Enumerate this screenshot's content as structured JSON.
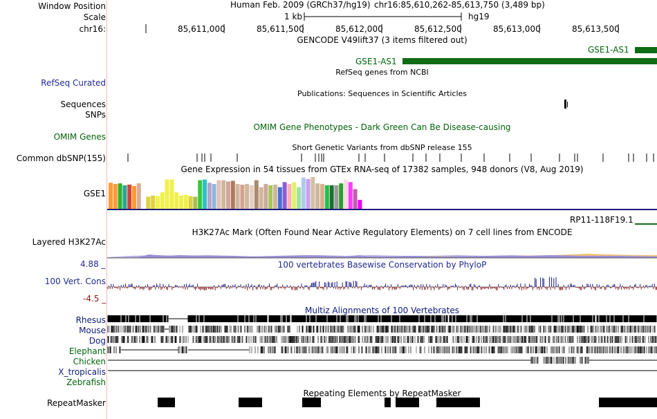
{
  "header": {
    "window_position_label": "Window Position",
    "scale_label": "Scale",
    "chrom_label": "chr16:",
    "assembly": "Human Feb. 2009 (GRCh37/hg19)",
    "position": "chr16:85,610,262-85,613,750 (3,489 bp)",
    "scale_text": "1 kb",
    "scale_db": "hg19",
    "ticks": [
      "85,611,000",
      "85,611,500",
      "85,612,000",
      "85,612,500",
      "85,613,000",
      "85,613,500"
    ]
  },
  "tracks": {
    "gencode": {
      "title": "GENCODE V49lift37 (3 items filtered out)",
      "gene_top": "GSE1-AS1",
      "gene_bottom": "GSE1-AS1",
      "color": "#0f6b14"
    },
    "refseq": {
      "label": "RefSeq Curated",
      "title": "RefSeq genes from NCBI"
    },
    "publications": {
      "title": "Publications: Sequences in Scientific Articles",
      "label_1": "Sequences",
      "label_2": "SNPs"
    },
    "omim": {
      "label": "OMIM Genes",
      "title": "OMIM Gene Phenotypes - Dark Green Can Be Disease-causing"
    },
    "dbsnp": {
      "label": "Common dbSNP(155)",
      "title": "Short Genetic Variants from dbSNP release 155"
    },
    "gtex": {
      "title": "Gene Expression in 54 tissues from GTEx RNA-seq of 17382 samples, 948 donors (V8, Aug 2019)",
      "label": "GSE1",
      "gene_right": "RP11-118F19.1",
      "bar_values": [
        0.82,
        0.78,
        0.8,
        0.74,
        0.76,
        0.72,
        0.8,
        0.62,
        0.38,
        0.42,
        0.4,
        0.52,
        0.92,
        0.92,
        0.52,
        0.42,
        0.44,
        0.4,
        0.38,
        0.9,
        0.92,
        0.82,
        0.78,
        0.9,
        0.9,
        0.86,
        0.88,
        0.78,
        0.76,
        0.78,
        0.74,
        0.9,
        0.68,
        0.78,
        0.74,
        0.76,
        0.68,
        0.84,
        0.78,
        0.84,
        0.68,
        0.98,
        0.94,
        1.0,
        0.8,
        0.78,
        0.74,
        0.74,
        0.74,
        0.8,
        0.92,
        0.84,
        0.62,
        0.28
      ],
      "bar_colors": [
        "#ff9b34",
        "#ff9b34",
        "#32b232",
        "#2aa78f",
        "#d0443c",
        "#ff9b34",
        "#ddac99",
        "#ffffff",
        "#ddd23f",
        "#ddd23f",
        "#f0f04a",
        "#f0f04a",
        "#f0f04a",
        "#f0f04a",
        "#f0f04a",
        "#f0f04a",
        "#f0f04a",
        "#ddd23f",
        "#aabd55",
        "#39c83c",
        "#29c3c8",
        "#b8a1cc",
        "#8fb8d8",
        "#e2c1b6",
        "#cfb79e",
        "#cfa89b",
        "#b07860",
        "#cfb79e",
        "#d7a38f",
        "#cfb79e",
        "#e2d0c0",
        "#a98b6e",
        "#cfb79e",
        "#cfa89b",
        "#a5c75a",
        "#cfb79e",
        "#4a6fd2",
        "#8d5cd4",
        "#ffb1b1",
        "#e0f06e",
        "#a0e2a0",
        "#b0c8f0",
        "#c8a2e8",
        "#d3c0a6",
        "#cfb79e",
        "#d8b08e",
        "#22c04b",
        "#1d6f2e",
        "#9b9b9b",
        "#2a9f2a",
        "#ffd7e6",
        "#ff3cff",
        "#c05faf",
        "#ee00ee"
      ]
    },
    "h3k27ac": {
      "label": "Layered H3K27Ac",
      "title": "H3K27Ac Mark (Often Found Near Active Regulatory Elements) on 7 cell lines from ENCODE"
    },
    "conservation": {
      "label": "100 Vert. Cons",
      "title": "100 vertebrates Basewise Conservation by PhyloP",
      "max": "4.88 _",
      "min": "-4.5 _"
    },
    "multiz": {
      "title": "Multiz Alignments of 100 Vertebrates",
      "species": [
        "Rhesus",
        "Mouse",
        "Dog",
        "Elephant",
        "Chicken",
        "X_tropicalis",
        "Zebrafish"
      ],
      "species_colors": [
        "#0d1a7a",
        "#0d1a7a",
        "#0d1a7a",
        "#00640a",
        "#00640a",
        "#0d1a7a",
        "#00640a"
      ]
    },
    "repeatmasker": {
      "label": "RepeatMasker",
      "title": "Repeating Elements by RepeatMasker"
    }
  }
}
